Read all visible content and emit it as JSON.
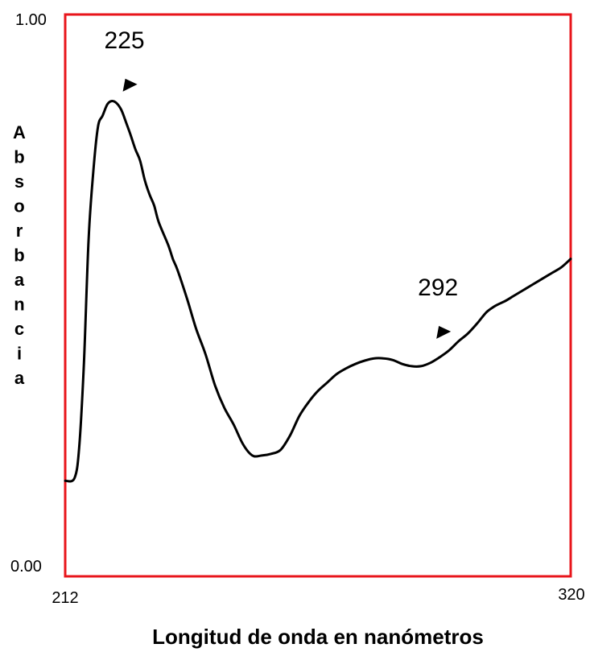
{
  "chart_data": {
    "type": "line",
    "title": "",
    "xlabel": "Longitud de onda en nanómetros",
    "ylabel": "Absorbancia",
    "xlim": [
      212,
      320
    ],
    "ylim": [
      0.0,
      1.0
    ],
    "x_tick_labels": [
      "212",
      "320"
    ],
    "y_tick_labels": [
      "1.00",
      "0.00"
    ],
    "grid": false,
    "frame_color": "#e8151b",
    "line_color": "#000000",
    "annotations": [
      {
        "label": "225",
        "x": 225,
        "y": 0.88
      },
      {
        "label": "292",
        "x": 292,
        "y": 0.44
      }
    ],
    "series": [
      {
        "x": [
          212,
          214,
          215,
          216,
          217,
          218,
          219,
          220,
          221,
          222,
          223,
          224,
          225,
          226,
          227,
          228,
          229,
          230,
          231,
          232,
          234,
          235,
          236,
          238,
          240,
          242,
          244,
          246,
          248,
          250,
          252,
          254,
          256,
          258,
          260,
          262,
          264,
          266,
          268,
          270,
          272,
          274,
          276,
          278,
          280,
          282,
          284,
          286,
          288,
          290,
          292,
          294,
          296,
          298,
          300,
          302,
          304,
          306,
          308,
          310,
          312,
          314,
          316,
          318,
          320
        ],
        "y": [
          0.17,
          0.175,
          0.23,
          0.38,
          0.6,
          0.72,
          0.8,
          0.82,
          0.84,
          0.846,
          0.842,
          0.83,
          0.808,
          0.785,
          0.76,
          0.74,
          0.705,
          0.68,
          0.66,
          0.63,
          0.59,
          0.565,
          0.545,
          0.495,
          0.44,
          0.395,
          0.34,
          0.3,
          0.27,
          0.235,
          0.215,
          0.215,
          0.218,
          0.225,
          0.25,
          0.285,
          0.31,
          0.33,
          0.345,
          0.36,
          0.37,
          0.378,
          0.384,
          0.388,
          0.388,
          0.385,
          0.378,
          0.374,
          0.374,
          0.38,
          0.39,
          0.402,
          0.418,
          0.432,
          0.45,
          0.47,
          0.482,
          0.49,
          0.5,
          0.51,
          0.52,
          0.53,
          0.54,
          0.55,
          0.565
        ]
      }
    ]
  }
}
